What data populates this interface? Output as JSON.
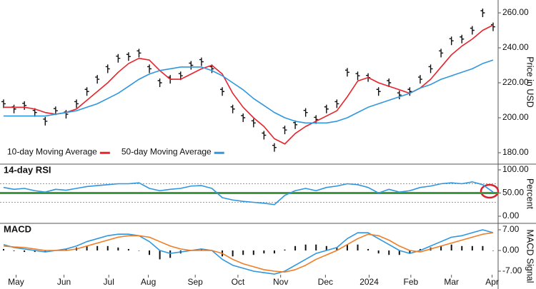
{
  "chart_data": [
    {
      "type": "line",
      "ylabel": "Price in USD",
      "xlim": [
        0,
        47
      ],
      "ylim": [
        175,
        265
      ],
      "yticks": [
        {
          "value": 180,
          "label": "180.00"
        },
        {
          "value": 200,
          "label": "200.00"
        },
        {
          "value": 220,
          "label": "220.00"
        },
        {
          "value": 240,
          "label": "240.00"
        },
        {
          "value": 260,
          "label": "260.00"
        }
      ],
      "legend": "lower left",
      "series": [
        {
          "style": "bars",
          "color": "#111111",
          "values": [
            208,
            205,
            207,
            203,
            198,
            204,
            202,
            208,
            215,
            222,
            228,
            234,
            235,
            237,
            228,
            220,
            222,
            224,
            230,
            232,
            228,
            215,
            205,
            200,
            197,
            190,
            183,
            193,
            196,
            203,
            199,
            205,
            208,
            226,
            224,
            223,
            215,
            220,
            213,
            215,
            222,
            228,
            237,
            244,
            245,
            250,
            260,
            252
          ]
        },
        {
          "name": "10-day Moving Average",
          "color": "#e8232b",
          "values": [
            206,
            206,
            206,
            205,
            203,
            202,
            203,
            205,
            210,
            215,
            220,
            226,
            231,
            234,
            233,
            227,
            222,
            222,
            225,
            228,
            230,
            225,
            214,
            206,
            200,
            195,
            188,
            185,
            191,
            195,
            198,
            201,
            204,
            212,
            221,
            223,
            220,
            218,
            216,
            214,
            217,
            222,
            229,
            236,
            241,
            245,
            250,
            253
          ]
        },
        {
          "name": "50-day Moving Average",
          "color": "#2f97df",
          "values": [
            201,
            201,
            201,
            201,
            201,
            202,
            203,
            204,
            206,
            208,
            211,
            214,
            218,
            222,
            225,
            227,
            228,
            229,
            229,
            229,
            227,
            224,
            220,
            216,
            211,
            207,
            203,
            200,
            198,
            197,
            197,
            197,
            198,
            200,
            203,
            206,
            208,
            210,
            212,
            214,
            217,
            219,
            222,
            224,
            226,
            228,
            231,
            233
          ]
        }
      ]
    },
    {
      "type": "line",
      "title": "14-day RSI",
      "ylabel": "Percent",
      "xlim": [
        0,
        47
      ],
      "ylim": [
        0,
        100
      ],
      "yticks": [
        {
          "value": 0,
          "label": "0.00"
        },
        {
          "value": 50,
          "label": "50.00"
        },
        {
          "value": 100,
          "label": "100.00"
        }
      ],
      "reference_lines": [
        {
          "value": 70,
          "color": "#999999",
          "dash": true
        },
        {
          "value": 30,
          "color": "#999999",
          "dash": true
        },
        {
          "value": 50,
          "color": "#3b9a3b",
          "width": 3
        }
      ],
      "series": [
        {
          "color": "#2f97df",
          "values": [
            62,
            58,
            60,
            55,
            52,
            58,
            56,
            60,
            64,
            66,
            68,
            70,
            70,
            72,
            60,
            55,
            58,
            60,
            65,
            66,
            60,
            40,
            35,
            32,
            30,
            28,
            25,
            45,
            55,
            60,
            55,
            62,
            65,
            70,
            68,
            62,
            50,
            58,
            52,
            55,
            62,
            65,
            70,
            72,
            70,
            74,
            68,
            52
          ]
        }
      ]
    },
    {
      "type": "line",
      "title": "MACD",
      "ylabel": "MACD Signal",
      "xlim": [
        0,
        47
      ],
      "ylim": [
        -7,
        7
      ],
      "yticks": [
        {
          "value": -7,
          "label": "-7.00"
        },
        {
          "value": 0,
          "label": "0.00"
        },
        {
          "value": 7,
          "label": "7.00"
        }
      ],
      "xticks": [
        {
          "value": 1.2,
          "label": "May"
        },
        {
          "value": 5.8,
          "label": "Jun"
        },
        {
          "value": 10.1,
          "label": "Jul"
        },
        {
          "value": 13.9,
          "label": "Aug"
        },
        {
          "value": 18.4,
          "label": "Sep"
        },
        {
          "value": 22.5,
          "label": "Oct"
        },
        {
          "value": 26.6,
          "label": "Nov"
        },
        {
          "value": 30.9,
          "label": "Dec"
        },
        {
          "value": 35.1,
          "label": "2024"
        },
        {
          "value": 39.1,
          "label": "Feb"
        },
        {
          "value": 43.0,
          "label": "Mar"
        },
        {
          "value": 46.9,
          "label": "Apr"
        }
      ],
      "series": [
        {
          "style": "histogram",
          "color": "#111111",
          "values": [
            0.5,
            -0.2,
            -0.5,
            -0.5,
            -0.5,
            0,
            0.5,
            1,
            1.5,
            1.5,
            1.5,
            1,
            0.5,
            0,
            -1.5,
            -3,
            -2.5,
            -1,
            0,
            0.5,
            0,
            -2,
            -2,
            -1.5,
            -1.5,
            -1,
            -1,
            0.3,
            1.5,
            2,
            2,
            1.5,
            1,
            2,
            2,
            0.5,
            -1,
            -1.5,
            -1.5,
            -1,
            0.5,
            1,
            1.5,
            2,
            1.5,
            1.5,
            1.5,
            0
          ]
        },
        {
          "color": "#2f97df",
          "values": [
            2,
            1,
            0.5,
            0,
            -0.5,
            0,
            0.5,
            1.5,
            3,
            4,
            5,
            5.5,
            5.5,
            5,
            3,
            0,
            -1,
            -0.5,
            0,
            0.5,
            0,
            -3,
            -5,
            -6,
            -7,
            -7.5,
            -8,
            -7,
            -5,
            -3,
            -1,
            0,
            1,
            4,
            6,
            6,
            4,
            2,
            0,
            -1,
            0,
            1.5,
            3,
            4.5,
            5,
            6,
            7,
            6
          ]
        },
        {
          "color": "#f07e26",
          "values": [
            1.5,
            1.2,
            1,
            0.5,
            0,
            0,
            0,
            0.5,
            1.5,
            2.5,
            3.5,
            4.5,
            5,
            5,
            4.5,
            3,
            1.5,
            0.5,
            0,
            0,
            0,
            -1,
            -3,
            -4.5,
            -5.5,
            -6.5,
            -7,
            -7.3,
            -6.5,
            -5,
            -3,
            -1.5,
            0,
            2,
            4,
            5.5,
            5,
            3.5,
            1.5,
            0,
            -0.5,
            0.5,
            1.5,
            2.5,
            3.5,
            4.5,
            5.5,
            6
          ]
        }
      ]
    }
  ]
}
